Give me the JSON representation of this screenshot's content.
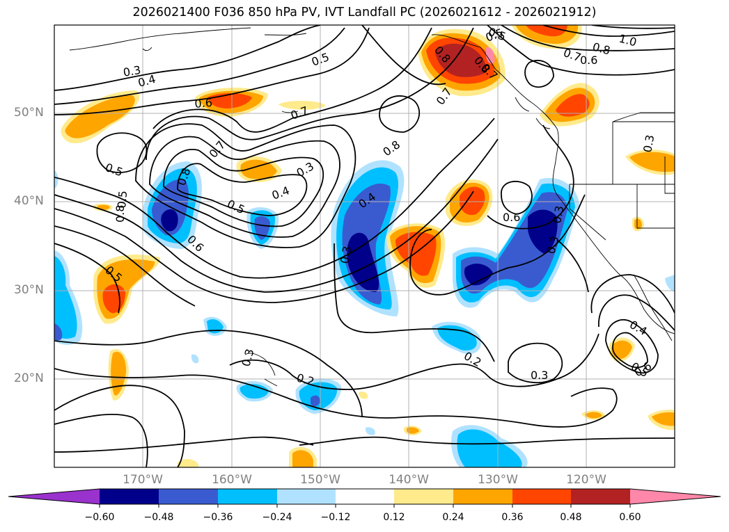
{
  "title": "2026021400 F036 850 hPa PV, IVT Landfall PC (2026021612 - 2026021912)",
  "lat_labels": [
    "50°N",
    "40°N",
    "30°N",
    "20°N"
  ],
  "lon_labels": [
    "170°W",
    "160°W",
    "150°W",
    "140°W",
    "130°W",
    "120°W"
  ],
  "colorbar": {
    "ticks": [
      "−0.60",
      "−0.48",
      "−0.36",
      "−0.24",
      "−0.12",
      "0.12",
      "0.24",
      "0.36",
      "0.48",
      "0.60"
    ],
    "colors": [
      "#9a32cd",
      "#00008b",
      "#3a5bd0",
      "#00bfff",
      "#b0e2ff",
      "#ffffff",
      "#ffea8c",
      "#ffa500",
      "#ff4500",
      "#b22222",
      "#ff88aa"
    ]
  },
  "contour_labels": [
    "0.3",
    "0.4",
    "0.5",
    "0.5",
    "0.6",
    "0.7",
    "0.8",
    "0.7",
    "0.5",
    "0.3",
    "0.4",
    "0.8",
    "0.6",
    "0.5",
    "0.8",
    "0.7",
    "0.4",
    "0.3",
    "0.6",
    "0.5",
    "0.5",
    "0.2",
    "0.3",
    "0.2",
    "0.3",
    "0.4",
    "0.5",
    "0.6",
    "0.8",
    "0.5",
    "0.7",
    "0.8",
    "1.0",
    "0.8",
    "0.6",
    "0.7",
    "0.3",
    "0.3",
    "0.3"
  ]
}
